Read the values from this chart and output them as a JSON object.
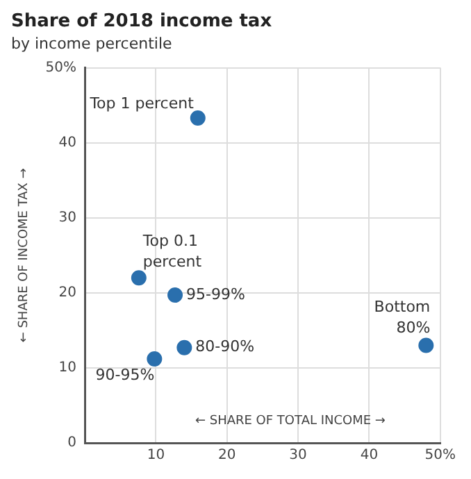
{
  "chart_data": {
    "type": "scatter",
    "title": "Share of 2018 income tax",
    "subtitle": "by income percentile",
    "xlabel": "← SHARE OF TOTAL INCOME →",
    "ylabel": "← SHARE OF INCOME TAX →",
    "x": [
      15.9,
      7.6,
      12.7,
      14.0,
      9.8,
      48.0
    ],
    "series": [
      {
        "color": "#2a6fad",
        "values": [
          43.3,
          22.0,
          19.7,
          12.7,
          11.2,
          13.0
        ]
      }
    ],
    "annotations": [
      {
        "text": "Top 1 percent",
        "x": 15.9,
        "y": 43.3
      },
      {
        "text": "Top 0.1\npercent",
        "x": 7.6,
        "y": 22.0
      },
      {
        "text": "95-99%",
        "x": 12.7,
        "y": 19.7
      },
      {
        "text": "80-90%",
        "x": 14.0,
        "y": 12.7
      },
      {
        "text": "90-95%",
        "x": 9.8,
        "y": 11.2
      },
      {
        "text": "Bottom\n80%",
        "x": 48.0,
        "y": 13.0
      }
    ],
    "xlim": [
      0,
      50
    ],
    "xticks": [
      10,
      20,
      30,
      40,
      {
        "value": 50,
        "label": "50%"
      }
    ],
    "ylim": [
      0,
      50
    ],
    "yticks": [
      0,
      10,
      20,
      30,
      40,
      {
        "value": 50,
        "label": "50%"
      }
    ],
    "grid": true,
    "marker": "circle",
    "legend": false
  }
}
